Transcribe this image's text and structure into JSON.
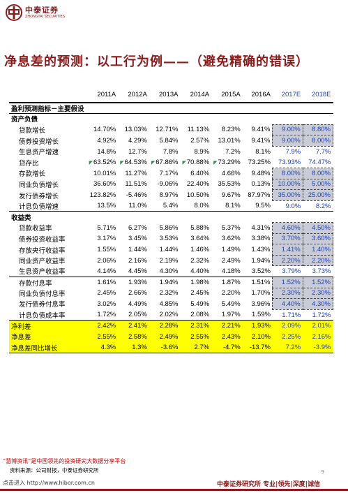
{
  "logo": {
    "cn": "中泰证券",
    "en": "ZHONGTAI SECURITIES"
  },
  "title": "净息差的预测：以工行为例——（避免精确的错误）",
  "table": {
    "headers": [
      "",
      "2011A",
      "2012A",
      "2013A",
      "2014A",
      "2015A",
      "2016A",
      "2017E",
      "2018E"
    ],
    "section1": "盈利预测指标－主要假设",
    "section1b": "资产负债",
    "rows1": [
      {
        "label": "贷款增长",
        "v": [
          "14.70%",
          "13.03%",
          "12.71%",
          "11.13%",
          "8.23%",
          "9.41%",
          "9.00%",
          "8.80%"
        ]
      },
      {
        "label": "债券投资增长",
        "v": [
          "4.92%",
          "4.29%",
          "5.84%",
          "2.57%",
          "13.01%",
          "9.41%",
          "9.00%",
          "8.00%"
        ]
      },
      {
        "label": "生息资产增速",
        "v": [
          "14.8%",
          "12.7%",
          "7.8%",
          "8.9%",
          "7.2%",
          "8.1%",
          "7.9%",
          "7.7%"
        ]
      },
      {
        "label": "贷存比",
        "v": [
          "63.52%",
          "64.53%",
          "67.86%",
          "70.88%",
          "73.29%",
          "73.25%",
          "73.93%",
          "74.47%"
        ]
      },
      {
        "label": "存款增长",
        "v": [
          "10.01%",
          "11.27%",
          "7.17%",
          "6.40%",
          "4.66%",
          "9.48%",
          "8.00%",
          "8.00%"
        ]
      },
      {
        "label": "同业负债增长",
        "v": [
          "36.60%",
          "11.51%",
          "-9.06%",
          "22.40%",
          "35.53%",
          "0.13%",
          "10.00%",
          "5.00%"
        ]
      },
      {
        "label": "发行债券增长",
        "v": [
          "123.82%",
          "-5.46%",
          "8.97%",
          "10.50%",
          "9.67%",
          "87.97%",
          "35.00%",
          "25.00%"
        ]
      },
      {
        "label": "计息负债增速",
        "v": [
          "13.5%",
          "11.0%",
          "5.4%",
          "8.0%",
          "8.1%",
          "9.5%",
          "9.0%",
          "8.2%"
        ]
      }
    ],
    "section2": "收益类",
    "rows2": [
      {
        "label": "贷款收益率",
        "v": [
          "5.71%",
          "6.27%",
          "5.86%",
          "5.88%",
          "5.37%",
          "4.31%",
          "4.60%",
          "4.50%"
        ]
      },
      {
        "label": "债券投资收益率",
        "v": [
          "3.17%",
          "3.45%",
          "3.53%",
          "3.64%",
          "3.62%",
          "3.38%",
          "3.70%",
          "3.60%"
        ]
      },
      {
        "label": "存放央行收益率",
        "v": [
          "1.55%",
          "1.44%",
          "1.44%",
          "1.46%",
          "1.49%",
          "1.43%",
          "1.41%",
          "1.40%"
        ]
      },
      {
        "label": "同业资产收益率",
        "v": [
          "2.06%",
          "2.16%",
          "2.19%",
          "2.32%",
          "2.49%",
          "1.94%",
          "2.20%",
          "2.20%"
        ]
      },
      {
        "label": "生息资产收益率",
        "v": [
          "4.14%",
          "4.45%",
          "4.30%",
          "4.40%",
          "4.18%",
          "3.52%",
          "3.79%",
          "3.73%"
        ]
      },
      {
        "label": "存款付息率",
        "v": [
          "1.61%",
          "1.93%",
          "1.94%",
          "1.98%",
          "1.87%",
          "1.51%",
          "1.52%",
          "1.52%"
        ]
      },
      {
        "label": "同业负债付息率",
        "v": [
          "2.45%",
          "2.66%",
          "2.32%",
          "2.45%",
          "2.20%",
          "1.70%",
          "2.30%",
          "2.30%"
        ]
      },
      {
        "label": "发行债券付息率",
        "v": [
          "3.02%",
          "4.49%",
          "4.85%",
          "5.49%",
          "5.49%",
          "3.96%",
          "4.40%",
          "4.30%"
        ]
      },
      {
        "label": "计息负债成本率",
        "v": [
          "1.72%",
          "2.05%",
          "2.02%",
          "2.08%",
          "1.97%",
          "1.59%",
          "1.71%",
          "1.72%"
        ]
      }
    ],
    "rows3": [
      {
        "label": "净利差",
        "v": [
          "2.42%",
          "2.41%",
          "2.28%",
          "2.31%",
          "2.21%",
          "1.93%",
          "2.09%",
          "2.01%"
        ]
      },
      {
        "label": "净息差",
        "v": [
          "2.55%",
          "2.58%",
          "2.49%",
          "2.55%",
          "2.43%",
          "2.10%",
          "2.25%",
          "2.16%"
        ]
      },
      {
        "label": "净息差同比增长",
        "v": [
          "4.3%",
          "1.3%",
          "-3.6%",
          "2.7%",
          "-4.7%",
          "-13.7%",
          "7.2%",
          "-3.9%"
        ]
      }
    ]
  },
  "source": "资料来源：公司财报，中泰证券研究所",
  "watermark_note": "“慧博资讯”是中国领先的投资研究大数据分享平台",
  "url": "点击进入 http://www.hibor.com.cn",
  "footer": "中泰证券研究所 专业|领先|深度|诚信",
  "page": "9",
  "colors": {
    "brand": "#8b1a1a",
    "estimate": "#1f3fb3",
    "highlight": "#ffff00",
    "box": "#c9ccd6"
  }
}
